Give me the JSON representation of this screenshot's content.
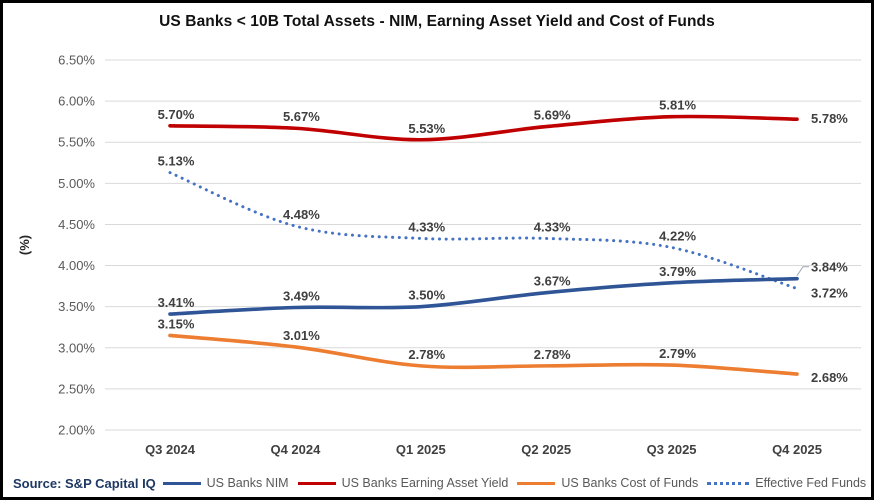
{
  "source": "Source: S&P Capital IQ",
  "chart_data": {
    "type": "line",
    "title": "US Banks < 10B Total Assets - NIM, Earning Asset Yield and Cost of Funds",
    "xlabel": "",
    "ylabel": "(%)",
    "categories": [
      "Q3 2024",
      "Q4 2024",
      "Q1 2025",
      "Q2 2025",
      "Q3 2025",
      "Q4 2025"
    ],
    "series": [
      {
        "name": "US Banks NIM",
        "style": "solid",
        "color": "#2F5597",
        "values": [
          3.41,
          3.49,
          3.5,
          3.67,
          3.79,
          3.84
        ]
      },
      {
        "name": "US Banks Earning Asset Yield",
        "style": "solid",
        "color": "#C00000",
        "values": [
          5.7,
          5.67,
          5.53,
          5.69,
          5.81,
          5.78
        ]
      },
      {
        "name": "US Banks Cost of Funds",
        "style": "solid",
        "color": "#ED7D31",
        "values": [
          3.15,
          3.01,
          2.78,
          2.78,
          2.79,
          2.68
        ]
      },
      {
        "name": "Effective Fed Funds",
        "style": "dotted",
        "color": "#4472C4",
        "values": [
          5.13,
          4.48,
          4.33,
          4.33,
          4.22,
          3.72
        ]
      }
    ],
    "ylim": [
      2.0,
      6.5
    ],
    "ytick_step": 0.5,
    "ytick_labels": [
      "2.00%",
      "2.50%",
      "3.00%",
      "3.50%",
      "4.00%",
      "4.50%",
      "5.00%",
      "5.50%",
      "6.00%",
      "6.50%"
    ],
    "data_label_format": "0.00%",
    "grid": true,
    "legend_position": "bottom"
  }
}
